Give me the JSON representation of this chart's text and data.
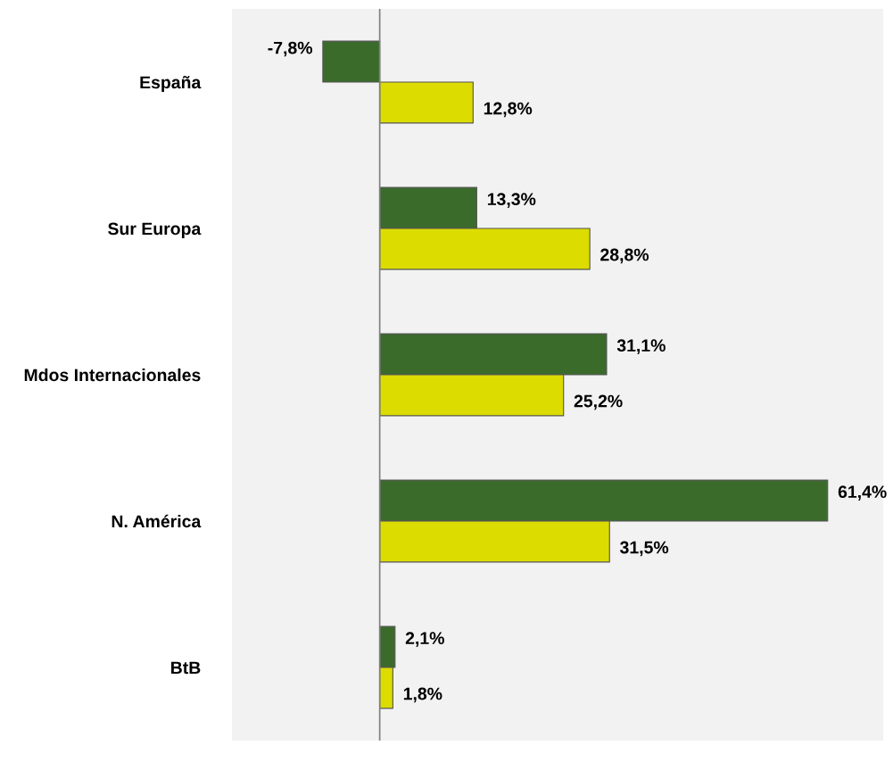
{
  "chart_data": {
    "type": "bar",
    "orientation": "horizontal",
    "tick_labels": "y",
    "grid": false,
    "legend": false,
    "categories": [
      "España",
      "Sur Europa",
      "Mdos Internacionales",
      "N. América",
      "BtB"
    ],
    "series": [
      {
        "color": "#3b6b2b",
        "values": [
          -7.8,
          13.3,
          31.1,
          61.4,
          2.1
        ],
        "value_labels": [
          "-7,8%",
          "13,3%",
          "31,1%",
          "61,4%",
          "2,1%"
        ]
      },
      {
        "color": "#dcdc00",
        "values": [
          12.8,
          28.8,
          25.2,
          31.5,
          1.8
        ],
        "value_labels": [
          "12,8%",
          "28,8%",
          "25,2%",
          "31,5%",
          "1,8%"
        ]
      }
    ]
  }
}
